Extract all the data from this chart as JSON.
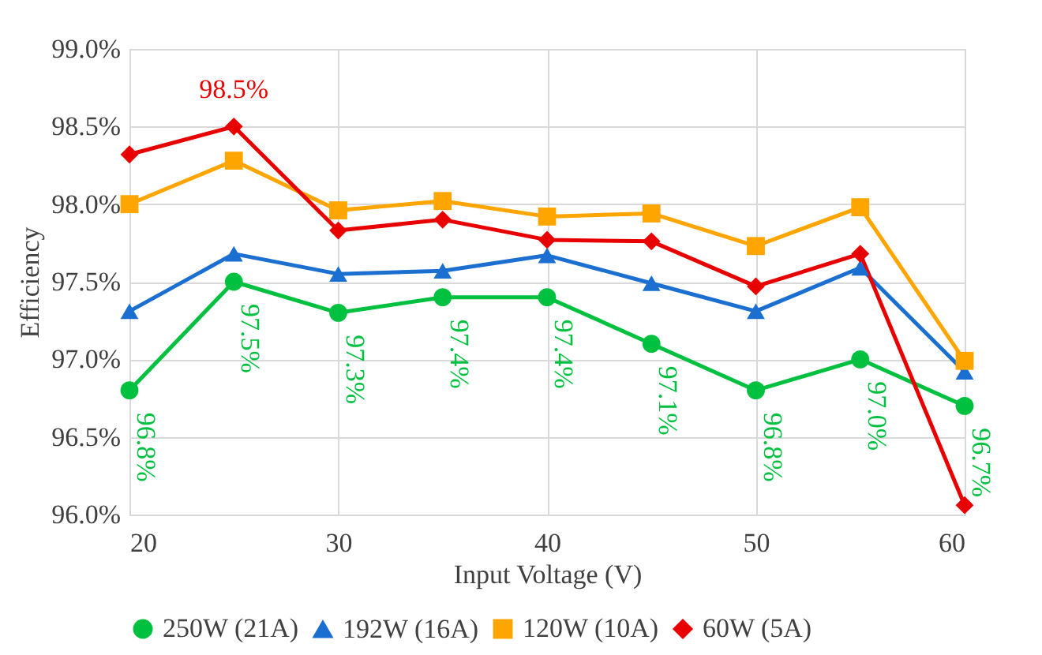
{
  "chart_data": {
    "type": "line",
    "xlabel": "Input Voltage (V)",
    "ylabel": "Efficiency",
    "x": [
      20,
      25,
      30,
      35,
      40,
      45,
      50,
      55,
      60
    ],
    "series": [
      {
        "name": "250W (21A)",
        "color": "#00c040",
        "marker": "circle",
        "values": [
          96.8,
          97.5,
          97.3,
          97.4,
          97.4,
          97.1,
          96.8,
          97.0,
          96.7
        ],
        "value_labels": [
          "96.8%",
          "97.5%",
          "97.3%",
          "97.4%",
          "97.4%",
          "97.1%",
          "96.8%",
          "97.0%",
          "96.7%"
        ]
      },
      {
        "name": "192W (16A)",
        "color": "#1a6fd0",
        "marker": "triangle",
        "values": [
          97.31,
          97.68,
          97.55,
          97.57,
          97.67,
          97.49,
          97.31,
          97.59,
          96.92
        ]
      },
      {
        "name": "120W (10A)",
        "color": "#ffa500",
        "marker": "square",
        "values": [
          98.0,
          98.28,
          97.96,
          98.02,
          97.92,
          97.94,
          97.73,
          97.98,
          96.99
        ]
      },
      {
        "name": "60W (5A)",
        "color": "#e80000",
        "marker": "diamond",
        "values": [
          98.32,
          98.5,
          97.83,
          97.9,
          97.77,
          97.76,
          97.47,
          97.68,
          96.06
        ],
        "value_labels": [
          null,
          "98.5%",
          null,
          null,
          null,
          null,
          null,
          null,
          null
        ]
      }
    ],
    "xlim": [
      20,
      60
    ],
    "xticks": [
      20,
      30,
      40,
      50,
      60
    ],
    "ylim": [
      96.0,
      99.0
    ],
    "yticks": [
      {
        "value": 96.0,
        "label": "96.0%"
      },
      {
        "value": 96.5,
        "label": "96.5%"
      },
      {
        "value": 97.0,
        "label": "97.0%"
      },
      {
        "value": 97.5,
        "label": "97.5%"
      },
      {
        "value": 98.0,
        "label": "98.0%"
      },
      {
        "value": 98.5,
        "label": "98.5%"
      },
      {
        "value": 99.0,
        "label": "99.0%"
      }
    ],
    "grid": true,
    "legend": "bottom"
  }
}
